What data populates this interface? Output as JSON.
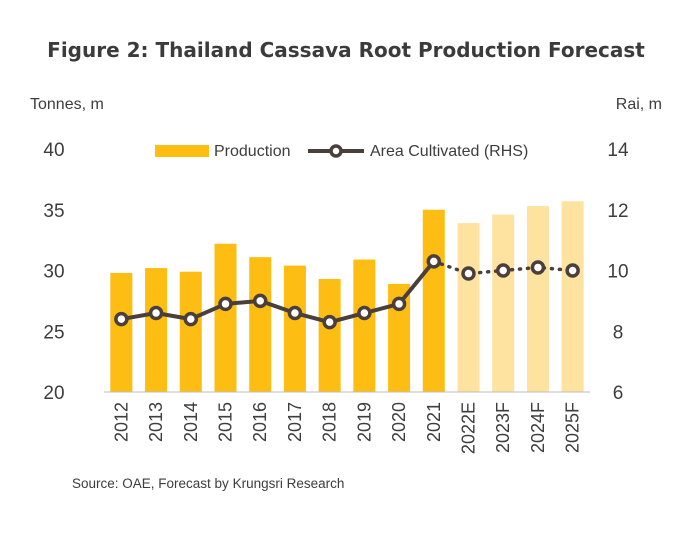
{
  "chart_data": {
    "type": "bar",
    "title": "Figure 2: Thailand Cassava Root Production Forecast",
    "ylabel": "Tonnes, m",
    "y2label": "Rai, m",
    "categories": [
      "2012",
      "2013",
      "2014",
      "2015",
      "2016",
      "2017",
      "2018",
      "2019",
      "2020",
      "2021",
      "2022E",
      "2023F",
      "2024F",
      "2025F"
    ],
    "ylim": [
      20,
      40
    ],
    "y_ticks": [
      20,
      25,
      30,
      35,
      40
    ],
    "y2lim": [
      6,
      14
    ],
    "y2_ticks": [
      6,
      8,
      10,
      12,
      14
    ],
    "series": [
      {
        "name": "Production",
        "type": "bar",
        "axis": "left",
        "values": [
          29.8,
          30.2,
          29.9,
          32.2,
          31.1,
          30.4,
          29.3,
          30.9,
          28.9,
          35.0,
          33.9,
          34.6,
          35.3,
          35.7
        ],
        "forecast_from_index": 10
      },
      {
        "name": "Area Cultivated (RHS)",
        "type": "line",
        "axis": "right",
        "values": [
          8.4,
          8.6,
          8.4,
          8.9,
          9.0,
          8.6,
          8.3,
          8.6,
          8.9,
          10.3,
          9.9,
          10.0,
          10.1,
          10.0
        ],
        "forecast_from_index": 9
      }
    ],
    "legend_position": "top",
    "grid": false,
    "colors": {
      "bar": "#FDBD12",
      "bar_forecast": "#FDE2A0",
      "line": "#4A3F3B",
      "marker_fill": "#FFFFFF"
    }
  },
  "source": "Source: OAE, Forecast by Krungsri Research"
}
